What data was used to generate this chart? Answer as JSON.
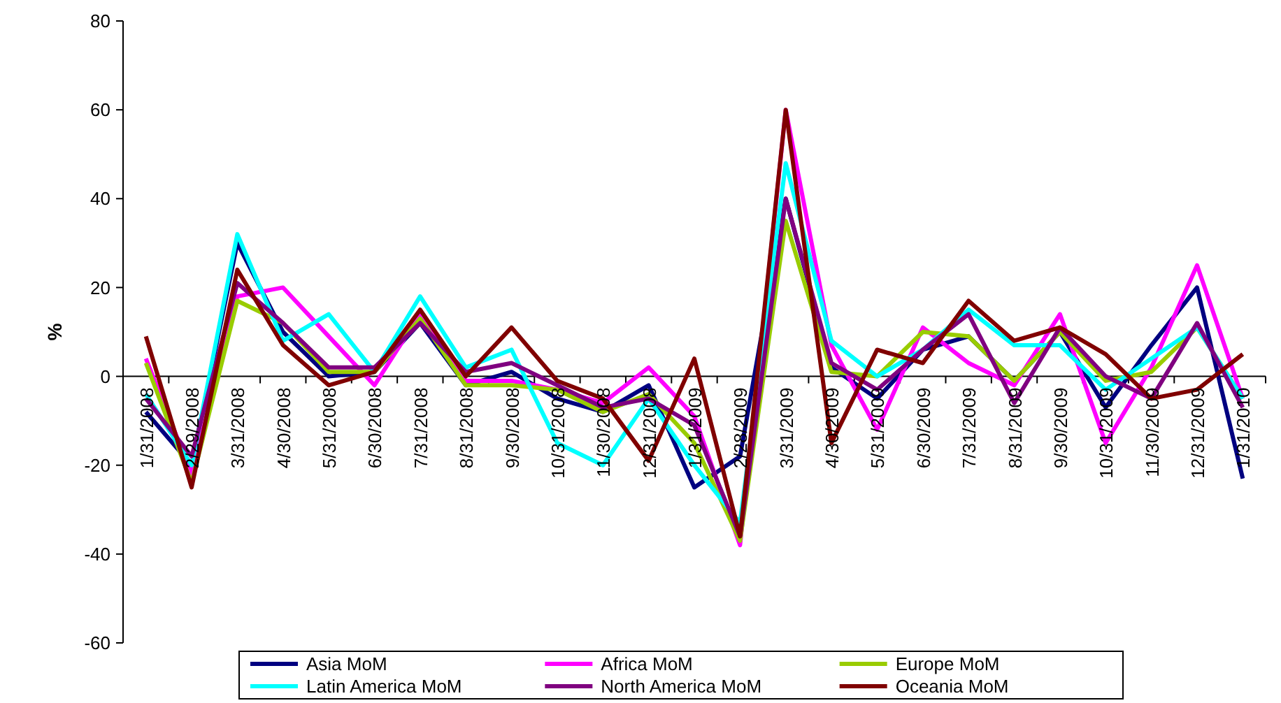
{
  "chart_data": {
    "type": "line",
    "ylabel": "%",
    "categories": [
      "1/31/2008",
      "2/29/2008",
      "3/31/2008",
      "4/30/2008",
      "5/31/2008",
      "6/30/2008",
      "7/31/2008",
      "8/31/2008",
      "9/30/2008",
      "10/31/2008",
      "11/30/2008",
      "12/31/2008",
      "1/31/2009",
      "2/28/2009",
      "3/31/2009",
      "4/30/2009",
      "5/31/2009",
      "6/30/2009",
      "7/31/2009",
      "8/31/2009",
      "9/30/2009",
      "10/31/2009",
      "11/30/2009",
      "12/31/2009",
      "1/31/2010"
    ],
    "ylim": [
      -60,
      80
    ],
    "yticks": [
      -60,
      -40,
      -20,
      0,
      20,
      40,
      60,
      80
    ],
    "grid": false,
    "legend": "bottom",
    "marker": "none",
    "line_style": "solid",
    "series": [
      {
        "name": "Asia MoM",
        "color": "#000080",
        "values": [
          -8,
          -20,
          30,
          10,
          0,
          1,
          12,
          -2,
          1,
          -5,
          -8,
          -2,
          -25,
          -18,
          40,
          2,
          -5,
          6,
          9,
          -1,
          10,
          -7,
          7,
          20,
          -23
        ]
      },
      {
        "name": "Africa MoM",
        "color": "#ff00ff",
        "values": [
          4,
          -22,
          18,
          20,
          9,
          -2,
          14,
          -1,
          -1,
          -3,
          -6,
          2,
          -9,
          -38,
          60,
          7,
          -12,
          11,
          3,
          -2,
          14,
          -15,
          2,
          25,
          -5
        ]
      },
      {
        "name": "Europe MoM",
        "color": "#99cc00",
        "values": [
          3,
          -24,
          17,
          12,
          1,
          1,
          13,
          -2,
          -2,
          -3,
          -8,
          -4,
          -15,
          -37,
          35,
          1,
          0,
          10,
          9,
          -1,
          10,
          -1,
          1,
          11,
          -5
        ]
      },
      {
        "name": "Latin America MoM",
        "color": "#00ffff",
        "values": [
          -4,
          -20,
          32,
          8,
          14,
          1,
          18,
          2,
          6,
          -15,
          -20,
          -5,
          -20,
          -33,
          48,
          8,
          0,
          6,
          15,
          7,
          7,
          -3,
          4,
          11,
          -5
        ]
      },
      {
        "name": "North America MoM",
        "color": "#800080",
        "values": [
          -5,
          -18,
          21,
          12,
          2,
          2,
          12,
          1,
          3,
          -2,
          -7,
          -5,
          -11,
          -36,
          40,
          3,
          -3,
          6,
          14,
          -6,
          11,
          0,
          -5,
          12,
          -7
        ]
      },
      {
        "name": "Oceania MoM",
        "color": "#800000",
        "values": [
          9,
          -25,
          24,
          7,
          -2,
          1,
          15,
          0,
          11,
          -1,
          -5,
          -19,
          4,
          -36,
          60,
          -15,
          6,
          3,
          17,
          8,
          11,
          5,
          -5,
          -3,
          5
        ]
      }
    ]
  }
}
